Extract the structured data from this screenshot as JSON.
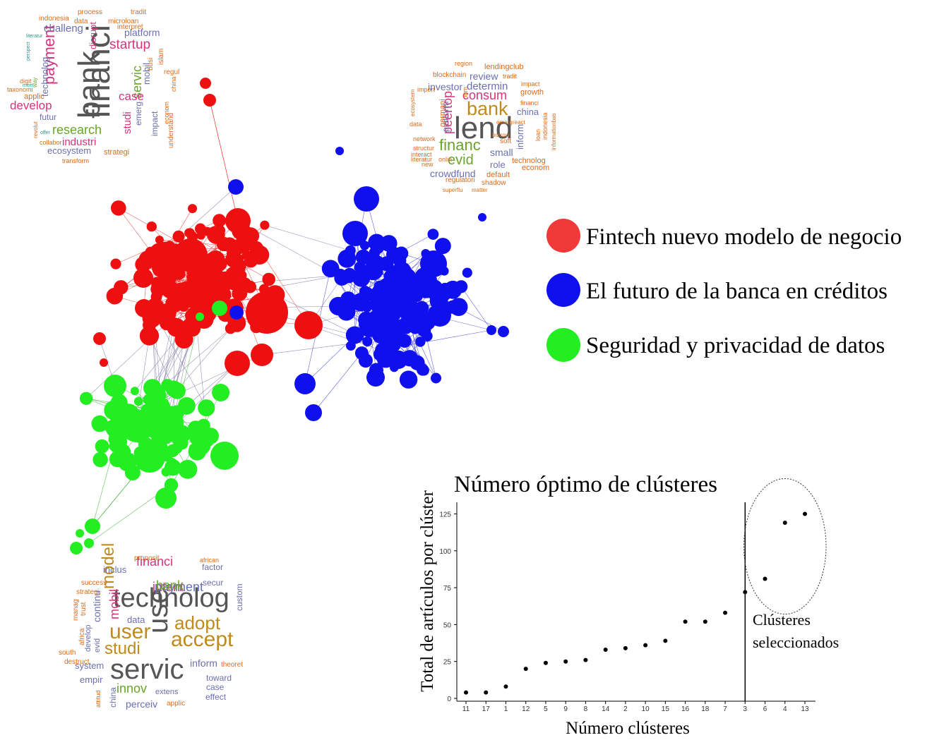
{
  "legend": {
    "items": [
      {
        "label": "Fintech nuevo modelo de negocio",
        "color": "#f03a3a"
      },
      {
        "label": "El futuro de la banca en créditos",
        "color": "#1010ee"
      },
      {
        "label": "Seguridad y privacidad de datos",
        "color": "#22ee22"
      }
    ]
  },
  "colors": {
    "red": "#ee1010",
    "blue": "#1010ee",
    "green": "#22ee22",
    "red_edge": "#e03030",
    "blue_edge": "#3030d0",
    "green_edge": "#30b030",
    "word_palette": [
      "#555555",
      "#6b6fb0",
      "#d6347c",
      "#c08a1c",
      "#6aa52a",
      "#d86b1e",
      "#2a9a8a"
    ]
  },
  "wordclouds": [
    {
      "name": "red-cluster-cloud",
      "words": [
        {
          "text": "financi",
          "size": 46,
          "color": "#555555",
          "rotate": true
        },
        {
          "text": "bank",
          "size": 44,
          "color": "#555555",
          "rotate": true
        },
        {
          "text": "payment",
          "size": 22,
          "color": "#d6347c",
          "rotate": true
        },
        {
          "text": "startup",
          "size": 19,
          "color": "#d6347c",
          "rotate": false
        },
        {
          "text": "platform",
          "size": 14,
          "color": "#6b6fb0",
          "rotate": false
        },
        {
          "text": "challeng",
          "size": 15,
          "color": "#6b6fb0",
          "rotate": false
        },
        {
          "text": "research",
          "size": 18,
          "color": "#6aa52a",
          "rotate": false
        },
        {
          "text": "servic",
          "size": 18,
          "color": "#6aa52a",
          "rotate": true
        },
        {
          "text": "develop",
          "size": 17,
          "color": "#d6347c",
          "rotate": false
        },
        {
          "text": "case",
          "size": 17,
          "color": "#d6347c",
          "rotate": false
        },
        {
          "text": "industri",
          "size": 15,
          "color": "#d6347c",
          "rotate": false
        },
        {
          "text": "ecosystem",
          "size": 13,
          "color": "#6b6fb0",
          "rotate": false
        },
        {
          "text": "technolog",
          "size": 13,
          "color": "#6b6fb0",
          "rotate": true
        },
        {
          "text": "disrupt",
          "size": 13,
          "color": "#d6347c",
          "rotate": true
        },
        {
          "text": "studi",
          "size": 15,
          "color": "#d6347c",
          "rotate": true
        },
        {
          "text": "mobil",
          "size": 13,
          "color": "#6b6fb0",
          "rotate": true
        },
        {
          "text": "emerg",
          "size": 12,
          "color": "#6b6fb0",
          "rotate": true
        },
        {
          "text": "impact",
          "size": 12,
          "color": "#6b6fb0",
          "rotate": true
        },
        {
          "text": "strategi",
          "size": 11,
          "color": "#d86b1e",
          "rotate": false
        },
        {
          "text": "futur",
          "size": 12,
          "color": "#6b6fb0",
          "rotate": false
        },
        {
          "text": "applic",
          "size": 11,
          "color": "#d86b1e",
          "rotate": false
        },
        {
          "text": "indonesia",
          "size": 10,
          "color": "#d86b1e",
          "rotate": false
        },
        {
          "text": "process",
          "size": 10,
          "color": "#d86b1e",
          "rotate": false
        },
        {
          "text": "tradit",
          "size": 10,
          "color": "#d86b1e",
          "rotate": false
        },
        {
          "text": "data",
          "size": 10,
          "color": "#d86b1e",
          "rotate": false
        },
        {
          "text": "microloan",
          "size": 10,
          "color": "#d86b1e",
          "rotate": false
        },
        {
          "text": "interpret",
          "size": 10,
          "color": "#d86b1e",
          "rotate": false
        },
        {
          "text": "understand",
          "size": 10,
          "color": "#d86b1e",
          "rotate": true
        },
        {
          "text": "islam",
          "size": 10,
          "color": "#d86b1e",
          "rotate": true
        },
        {
          "text": "regul",
          "size": 10,
          "color": "#d86b1e",
          "rotate": false
        },
        {
          "text": "busi",
          "size": 10,
          "color": "#d86b1e",
          "rotate": true
        },
        {
          "text": "taxonomi",
          "size": 9,
          "color": "#d86b1e",
          "rotate": false
        },
        {
          "text": "digit",
          "size": 9,
          "color": "#d86b1e",
          "rotate": false
        },
        {
          "text": "transform",
          "size": 9,
          "color": "#d86b1e",
          "rotate": false
        },
        {
          "text": "collabor",
          "size": 9,
          "color": "#d86b1e",
          "rotate": false
        },
        {
          "text": "econom",
          "size": 9,
          "color": "#d86b1e",
          "rotate": true
        },
        {
          "text": "china",
          "size": 9,
          "color": "#d86b1e",
          "rotate": true
        },
        {
          "text": "revolut",
          "size": 8,
          "color": "#d86b1e",
          "rotate": true
        },
        {
          "text": "way",
          "size": 8,
          "color": "#6aa52a",
          "rotate": true
        },
        {
          "text": "meet",
          "size": 7,
          "color": "#2a9a8a",
          "rotate": false
        },
        {
          "text": "offer",
          "size": 7,
          "color": "#2a9a8a",
          "rotate": false
        },
        {
          "text": "literatur",
          "size": 7,
          "color": "#2a9a8a",
          "rotate": false
        },
        {
          "text": "perspect",
          "size": 7,
          "color": "#2a9a8a",
          "rotate": true
        }
      ]
    },
    {
      "name": "blue-cluster-cloud",
      "words": [
        {
          "text": "lend",
          "size": 44,
          "color": "#555555",
          "rotate": false
        },
        {
          "text": "bank",
          "size": 27,
          "color": "#c08a1c",
          "rotate": false
        },
        {
          "text": "consum",
          "size": 18,
          "color": "#d6347c",
          "rotate": false
        },
        {
          "text": "financ",
          "size": 22,
          "color": "#6aa52a",
          "rotate": false
        },
        {
          "text": "evid",
          "size": 20,
          "color": "#6aa52a",
          "rotate": false
        },
        {
          "text": "peertop",
          "size": 18,
          "color": "#d6347c",
          "rotate": true
        },
        {
          "text": "determin",
          "size": 15,
          "color": "#6b6fb0",
          "rotate": false
        },
        {
          "text": "review",
          "size": 14,
          "color": "#6b6fb0",
          "rotate": false
        },
        {
          "text": "investor",
          "size": 14,
          "color": "#6b6fb0",
          "rotate": false
        },
        {
          "text": "crowdfund",
          "size": 14,
          "color": "#6b6fb0",
          "rotate": false
        },
        {
          "text": "small",
          "size": 14,
          "color": "#6b6fb0",
          "rotate": false
        },
        {
          "text": "role",
          "size": 13,
          "color": "#6b6fb0",
          "rotate": false
        },
        {
          "text": "china",
          "size": 13,
          "color": "#6b6fb0",
          "rotate": false
        },
        {
          "text": "inform",
          "size": 13,
          "color": "#6b6fb0",
          "rotate": true
        },
        {
          "text": "platform",
          "size": 12,
          "color": "#6b6fb0",
          "rotate": true
        },
        {
          "text": "germani",
          "size": 11,
          "color": "#d86b1e",
          "rotate": true
        },
        {
          "text": "growth",
          "size": 11,
          "color": "#d86b1e",
          "rotate": false
        },
        {
          "text": "lendingclub",
          "size": 11,
          "color": "#d86b1e",
          "rotate": false
        },
        {
          "text": "blockchain",
          "size": 10,
          "color": "#d86b1e",
          "rotate": false
        },
        {
          "text": "default",
          "size": 11,
          "color": "#d86b1e",
          "rotate": false
        },
        {
          "text": "econom",
          "size": 11,
          "color": "#d86b1e",
          "rotate": false
        },
        {
          "text": "technolog",
          "size": 11,
          "color": "#d86b1e",
          "rotate": false
        },
        {
          "text": "regulatori",
          "size": 10,
          "color": "#d86b1e",
          "rotate": false
        },
        {
          "text": "shadow",
          "size": 10,
          "color": "#d86b1e",
          "rotate": false
        },
        {
          "text": "soft",
          "size": 10,
          "color": "#d86b1e",
          "rotate": false
        },
        {
          "text": "impact",
          "size": 9,
          "color": "#d86b1e",
          "rotate": false
        },
        {
          "text": "region",
          "size": 9,
          "color": "#d86b1e",
          "rotate": false
        },
        {
          "text": "tradit",
          "size": 9,
          "color": "#d86b1e",
          "rotate": false
        },
        {
          "text": "import",
          "size": 9,
          "color": "#d86b1e",
          "rotate": false
        },
        {
          "text": "financi",
          "size": 9,
          "color": "#d86b1e",
          "rotate": false
        },
        {
          "text": "firm",
          "size": 9,
          "color": "#d86b1e",
          "rotate": true
        },
        {
          "text": "data",
          "size": 9,
          "color": "#d86b1e",
          "rotate": false
        },
        {
          "text": "network",
          "size": 9,
          "color": "#d86b1e",
          "rotate": false
        },
        {
          "text": "structur",
          "size": 9,
          "color": "#d86b1e",
          "rotate": false
        },
        {
          "text": "interact",
          "size": 9,
          "color": "#d86b1e",
          "rotate": false
        },
        {
          "text": "literatur",
          "size": 9,
          "color": "#d86b1e",
          "rotate": false
        },
        {
          "text": "onlin",
          "size": 9,
          "color": "#d86b1e",
          "rotate": false
        },
        {
          "text": "new",
          "size": 9,
          "color": "#d86b1e",
          "rotate": false
        },
        {
          "text": "ecosystem",
          "size": 8,
          "color": "#d86b1e",
          "rotate": true
        },
        {
          "text": "superflu",
          "size": 8,
          "color": "#d86b1e",
          "rotate": false
        },
        {
          "text": "matter",
          "size": 8,
          "color": "#d86b1e",
          "rotate": false
        },
        {
          "text": "borrow",
          "size": 8,
          "color": "#d86b1e",
          "rotate": false
        },
        {
          "text": "emerg",
          "size": 8,
          "color": "#d86b1e",
          "rotate": false
        },
        {
          "text": "react",
          "size": 8,
          "color": "#d86b1e",
          "rotate": false
        },
        {
          "text": "indonesia",
          "size": 9,
          "color": "#d86b1e",
          "rotate": true
        },
        {
          "text": "loan",
          "size": 9,
          "color": "#d86b1e",
          "rotate": true
        },
        {
          "text": "informationbas",
          "size": 8,
          "color": "#d86b1e",
          "rotate": true
        }
      ]
    },
    {
      "name": "green-cluster-cloud",
      "words": [
        {
          "text": "technolog",
          "size": 38,
          "color": "#555555",
          "rotate": false
        },
        {
          "text": "servic",
          "size": 40,
          "color": "#555555",
          "rotate": false
        },
        {
          "text": "use",
          "size": 40,
          "color": "#555555",
          "rotate": true
        },
        {
          "text": "user",
          "size": 30,
          "color": "#c08a1c",
          "rotate": false
        },
        {
          "text": "accept",
          "size": 30,
          "color": "#c08a1c",
          "rotate": false
        },
        {
          "text": "adopt",
          "size": 26,
          "color": "#c08a1c",
          "rotate": false
        },
        {
          "text": "studi",
          "size": 24,
          "color": "#c08a1c",
          "rotate": false
        },
        {
          "text": "model",
          "size": 24,
          "color": "#c08a1c",
          "rotate": true
        },
        {
          "text": "intent",
          "size": 18,
          "color": "#d6347c",
          "rotate": false
        },
        {
          "text": "financi",
          "size": 18,
          "color": "#d6347c",
          "rotate": false
        },
        {
          "text": "payment",
          "size": 18,
          "color": "#6b6fb0",
          "rotate": false
        },
        {
          "text": "bank",
          "size": 18,
          "color": "#6aa52a",
          "rotate": false
        },
        {
          "text": "innov",
          "size": 18,
          "color": "#6aa52a",
          "rotate": false
        },
        {
          "text": "mobil",
          "size": 18,
          "color": "#d6347c",
          "rotate": true
        },
        {
          "text": "continu",
          "size": 14,
          "color": "#6b6fb0",
          "rotate": true
        },
        {
          "text": "inform",
          "size": 14,
          "color": "#6b6fb0",
          "rotate": false
        },
        {
          "text": "perceiv",
          "size": 14,
          "color": "#6b6fb0",
          "rotate": false
        },
        {
          "text": "inclus",
          "size": 13,
          "color": "#6b6fb0",
          "rotate": false
        },
        {
          "text": "system",
          "size": 13,
          "color": "#6b6fb0",
          "rotate": false
        },
        {
          "text": "empir",
          "size": 13,
          "color": "#6b6fb0",
          "rotate": false
        },
        {
          "text": "data",
          "size": 13,
          "color": "#6b6fb0",
          "rotate": false
        },
        {
          "text": "factor",
          "size": 12,
          "color": "#6b6fb0",
          "rotate": false
        },
        {
          "text": "secur",
          "size": 12,
          "color": "#6b6fb0",
          "rotate": false
        },
        {
          "text": "custom",
          "size": 12,
          "color": "#6b6fb0",
          "rotate": true
        },
        {
          "text": "toward",
          "size": 12,
          "color": "#6b6fb0",
          "rotate": false
        },
        {
          "text": "case",
          "size": 12,
          "color": "#6b6fb0",
          "rotate": false
        },
        {
          "text": "effect",
          "size": 12,
          "color": "#6b6fb0",
          "rotate": false
        },
        {
          "text": "extens",
          "size": 11,
          "color": "#6b6fb0",
          "rotate": false
        },
        {
          "text": "evid",
          "size": 11,
          "color": "#6b6fb0",
          "rotate": true
        },
        {
          "text": "develop",
          "size": 11,
          "color": "#6b6fb0",
          "rotate": true
        },
        {
          "text": "china",
          "size": 12,
          "color": "#6b6fb0",
          "rotate": true
        },
        {
          "text": "theoret",
          "size": 10,
          "color": "#d86b1e",
          "rotate": false
        },
        {
          "text": "success",
          "size": 10,
          "color": "#d86b1e",
          "rotate": false
        },
        {
          "text": "strategi",
          "size": 10,
          "color": "#d86b1e",
          "rotate": false
        },
        {
          "text": "proposit",
          "size": 10,
          "color": "#d86b1e",
          "rotate": false
        },
        {
          "text": "african",
          "size": 9,
          "color": "#d86b1e",
          "rotate": false
        },
        {
          "text": "manag",
          "size": 10,
          "color": "#d86b1e",
          "rotate": true
        },
        {
          "text": "trust",
          "size": 10,
          "color": "#d86b1e",
          "rotate": true
        },
        {
          "text": "africa",
          "size": 10,
          "color": "#d86b1e",
          "rotate": true
        },
        {
          "text": "south",
          "size": 10,
          "color": "#d86b1e",
          "rotate": false
        },
        {
          "text": "destruct",
          "size": 10,
          "color": "#d86b1e",
          "rotate": false
        },
        {
          "text": "attitud",
          "size": 9,
          "color": "#d86b1e",
          "rotate": true
        },
        {
          "text": "applic",
          "size": 10,
          "color": "#d86b1e",
          "rotate": false
        }
      ]
    }
  ],
  "chart_data": {
    "type": "scatter",
    "title": "Número óptimo de clústeres",
    "xlabel": "Número clústeres",
    "ylabel": "Total de artículos por clúster",
    "categories": [
      "11",
      "17",
      "1",
      "12",
      "5",
      "9",
      "8",
      "14",
      "2",
      "10",
      "15",
      "16",
      "18",
      "7",
      "3",
      "6",
      "4",
      "13"
    ],
    "values": [
      4,
      4,
      8,
      20,
      24,
      25,
      26,
      33,
      34,
      36,
      39,
      52,
      52,
      58,
      72,
      81,
      119,
      125
    ],
    "ylim": [
      0,
      130
    ],
    "yticks": [
      0,
      25,
      50,
      75,
      100,
      125
    ],
    "grid": false,
    "cutoff_category": "3",
    "annotation": "Clústeres seleccionados",
    "highlighted_categories": [
      "6",
      "4",
      "13"
    ]
  }
}
